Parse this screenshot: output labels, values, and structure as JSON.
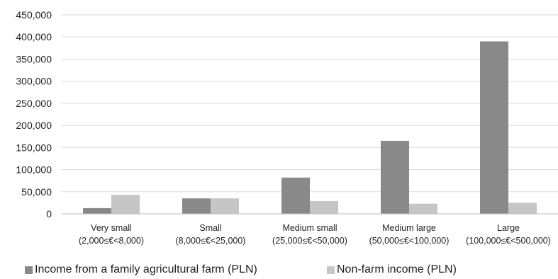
{
  "chart_data": {
    "type": "bar",
    "title": "",
    "xlabel": "",
    "ylabel": "",
    "ylim": [
      0,
      450000
    ],
    "yticks": [
      0,
      50000,
      100000,
      150000,
      200000,
      250000,
      300000,
      350000,
      400000,
      450000
    ],
    "ytick_labels": [
      "0",
      "50,000",
      "100,000",
      "150,000",
      "200,000",
      "250,000",
      "300,000",
      "350,000",
      "400,000",
      "450,000"
    ],
    "grid": "horizontal",
    "legend_position": "bottom",
    "categories": [
      {
        "name": "Very small",
        "range": "(2,000≤€<8,000)"
      },
      {
        "name": "Small",
        "range": "(8,000≤€<25,000)"
      },
      {
        "name": "Medium small",
        "range": "(25,000≤€<50,000)"
      },
      {
        "name": "Medium large",
        "range": "(50,000≤€<100,000)"
      },
      {
        "name": "Large",
        "range": "(100,000≤€<500,000)"
      }
    ],
    "series": [
      {
        "name": "Income from a family agricultural farm (PLN)",
        "color": "#898989",
        "values": [
          13000,
          35000,
          82000,
          165000,
          390000
        ]
      },
      {
        "name": "Non-farm income (PLN)",
        "color": "#c6c6c6",
        "values": [
          43000,
          35000,
          29000,
          23000,
          25000
        ]
      }
    ]
  }
}
